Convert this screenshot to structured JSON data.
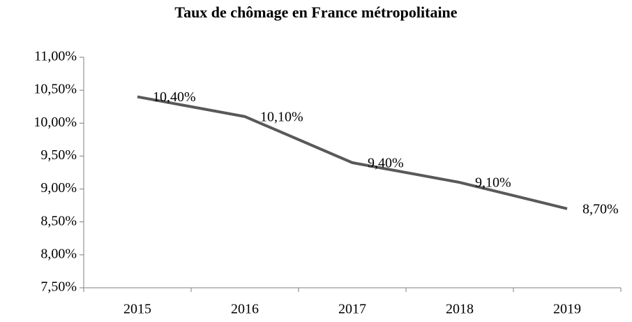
{
  "chart_data": {
    "type": "line",
    "title": "Taux de chômage en France métropolitaine",
    "categories": [
      "2015",
      "2016",
      "2017",
      "2018",
      "2019"
    ],
    "series": [
      {
        "name": "Taux de chômage",
        "color": "#595959",
        "values": [
          10.4,
          10.1,
          9.4,
          9.1,
          8.7
        ],
        "value_labels": [
          "10,40%",
          "10,10%",
          "9,40%",
          "9,10%",
          "8,70%"
        ]
      }
    ],
    "ylim": [
      7.5,
      11
    ],
    "yticks": [
      {
        "value": 7.5,
        "label": "7,50%"
      },
      {
        "value": 8,
        "label": "8,00%"
      },
      {
        "value": 8.5,
        "label": "8,50%"
      },
      {
        "value": 9,
        "label": "9,00%"
      },
      {
        "value": 9.5,
        "label": "9,50%"
      },
      {
        "value": 10,
        "label": "10,00%"
      },
      {
        "value": 10.5,
        "label": "10,50%"
      },
      {
        "value": 11,
        "label": "11,00%"
      }
    ],
    "grid": false
  }
}
